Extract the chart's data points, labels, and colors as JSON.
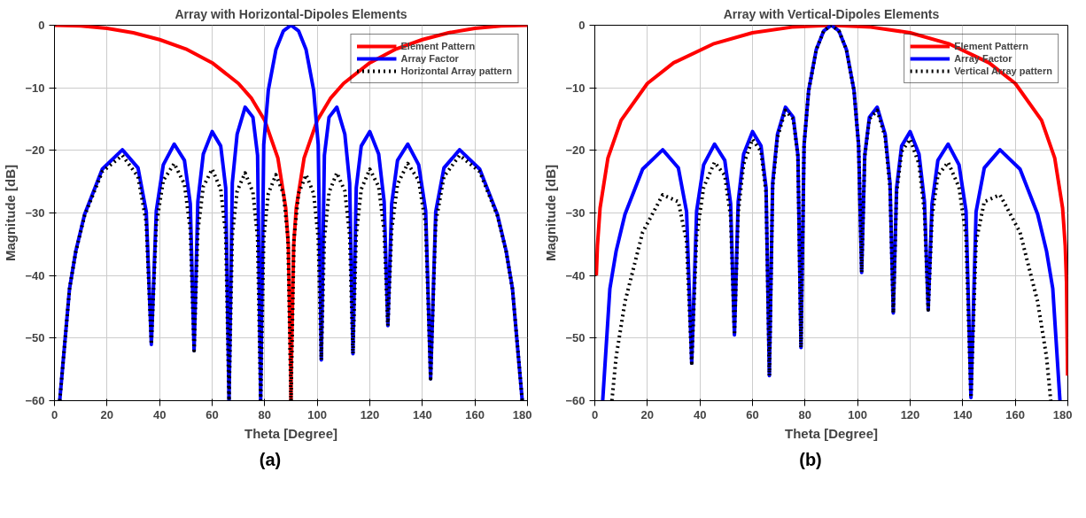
{
  "chart_data": [
    {
      "type": "line",
      "title": "Array with Horizontal-Dipoles Elements",
      "xlabel": "Theta [Degree]",
      "ylabel": "Magnitude [dB]",
      "xlim": [
        0,
        180
      ],
      "xticks": [
        0,
        20,
        40,
        60,
        80,
        100,
        120,
        140,
        160,
        180
      ],
      "ylim": [
        -60,
        0
      ],
      "yticks": [
        -60,
        -50,
        -40,
        -30,
        -20,
        -10,
        0
      ],
      "grid": true,
      "legend": "top right",
      "annotations": [
        "(a)"
      ],
      "series": [
        {
          "name": "Element Pattern",
          "color": "#ff0000",
          "line_style": "solid",
          "x": [
            0,
            10,
            20,
            30,
            40,
            50,
            60,
            70,
            75,
            80,
            85,
            88,
            89,
            89.9,
            90,
            90.1,
            91,
            92,
            95,
            100,
            105,
            110,
            120,
            130,
            140,
            150,
            160,
            170,
            180
          ],
          "values": [
            0,
            -0.1,
            -0.5,
            -1.2,
            -2.3,
            -3.8,
            -6,
            -9.3,
            -11.7,
            -15.2,
            -21.2,
            -29.2,
            -35.2,
            -55.2,
            -60,
            -55.2,
            -35.2,
            -29.2,
            -21.2,
            -15.2,
            -11.7,
            -9.3,
            -6,
            -3.8,
            -2.3,
            -1.2,
            -0.5,
            -0.1,
            0
          ]
        },
        {
          "name": "Array Factor",
          "color": "#0000ff",
          "line_style": "solid",
          "x": [
            2,
            5.73,
            8.11,
            11.48,
            18.19,
            25.84,
            31.79,
            34.92,
            36.87,
            38.74,
            41.41,
            45.57,
            49.46,
            51.68,
            53.13,
            54.55,
            56.63,
            60,
            63.26,
            65.17,
            66.42,
            67.67,
            69.51,
            72.54,
            75.52,
            77.29,
            78.46,
            79.63,
            81.37,
            84.26,
            87.13,
            90,
            92.87,
            95.74,
            98.63,
            100.37,
            101.54,
            102.71,
            104.48,
            107.46,
            110.49,
            112.33,
            113.58,
            114.83,
            116.74,
            120,
            123.37,
            125.45,
            126.87,
            128.32,
            130.54,
            134.43,
            138.59,
            141.26,
            143.13,
            145.08,
            148.21,
            154.16,
            161.81,
            168.52,
            171.89,
            174.27,
            178
          ],
          "values": [
            -60,
            -42.1,
            -36.1,
            -30.2,
            -23.0,
            -19.9,
            -22.8,
            -29.8,
            -51,
            -29.7,
            -22.3,
            -19.0,
            -21.6,
            -28.5,
            -52,
            -28.2,
            -20.6,
            -17.0,
            -19.3,
            -26.0,
            -60,
            -25.2,
            -17.4,
            -13.1,
            -14.7,
            -20.8,
            -60,
            -19.1,
            -10.4,
            -3.9,
            -0.9,
            0,
            -0.9,
            -3.9,
            -10.4,
            -19.1,
            -53.5,
            -20.8,
            -14.7,
            -13.1,
            -17.4,
            -25.2,
            -52.5,
            -26.0,
            -19.3,
            -17.0,
            -20.6,
            -28.2,
            -48,
            -28.5,
            -21.6,
            -19.0,
            -22.3,
            -29.7,
            -56.5,
            -29.8,
            -22.8,
            -19.9,
            -23.0,
            -30.2,
            -36.1,
            -42.1,
            -60
          ]
        },
        {
          "name": "Horizontal Array pattern",
          "color": "#000000",
          "line_style": "dotted",
          "x": [
            2,
            5.73,
            8.11,
            11.48,
            18.19,
            25.84,
            31.79,
            34.92,
            36.87,
            38.74,
            41.41,
            45.57,
            49.46,
            51.68,
            53.13,
            54.55,
            56.63,
            60,
            63.26,
            65.17,
            66.42,
            67.67,
            69.51,
            72.54,
            75.52,
            77.29,
            78.46,
            79.63,
            81.37,
            84.26,
            87.13,
            88.85,
            90,
            91.15,
            92.87,
            95.74,
            98.63,
            100.37,
            101.54,
            102.71,
            104.48,
            107.46,
            110.49,
            112.33,
            113.58,
            114.83,
            116.74,
            120,
            123.37,
            125.45,
            126.87,
            128.32,
            130.54,
            134.43,
            138.59,
            141.26,
            143.13,
            145.08,
            148.21,
            154.16,
            161.81,
            168.52,
            171.89,
            174.27,
            178
          ],
          "values": [
            -60,
            -42.1,
            -36.2,
            -30.4,
            -23.4,
            -20.8,
            -24.2,
            -31.5,
            -51,
            -31.9,
            -24.8,
            -22.1,
            -25.4,
            -32.7,
            -52,
            -32.9,
            -25.8,
            -23.0,
            -26.2,
            -33.5,
            -60,
            -33.6,
            -26.5,
            -23.6,
            -26.7,
            -34.0,
            -60,
            -34.0,
            -26.9,
            -23.9,
            -26.9,
            -34.1,
            -60,
            -34.1,
            -26.9,
            -23.9,
            -26.9,
            -34.0,
            -53.5,
            -34.0,
            -26.7,
            -23.6,
            -26.5,
            -33.6,
            -52.5,
            -33.5,
            -26.2,
            -23.0,
            -25.8,
            -32.9,
            -48,
            -32.7,
            -25.4,
            -22.1,
            -24.8,
            -31.9,
            -56.5,
            -31.5,
            -24.2,
            -20.8,
            -23.4,
            -30.4,
            -36.2,
            -42.1,
            -60
          ]
        }
      ]
    },
    {
      "type": "line",
      "title": "Array with Vertical-Dipoles Elements",
      "xlabel": "Theta [Degree]",
      "ylabel": "Magnitude [dB]",
      "xlim": [
        0,
        180
      ],
      "xticks": [
        0,
        20,
        40,
        60,
        80,
        100,
        120,
        140,
        160,
        180
      ],
      "ylim": [
        -60,
        0
      ],
      "yticks": [
        -60,
        -50,
        -40,
        -30,
        -20,
        -10,
        0
      ],
      "grid": true,
      "legend": "top right",
      "annotations": [
        "(b)"
      ],
      "series": [
        {
          "name": "Element Pattern",
          "color": "#ff0000",
          "line_style": "solid",
          "x": [
            0.57,
            1,
            2,
            5,
            10,
            20,
            30,
            45,
            60,
            75,
            90,
            105,
            120,
            135,
            150,
            160,
            170,
            175,
            178,
            179,
            179.5,
            179.91
          ],
          "values": [
            -40,
            -35.2,
            -29.2,
            -21.2,
            -15.2,
            -9.3,
            -6,
            -3,
            -1.2,
            -0.3,
            0,
            -0.3,
            -1.2,
            -3,
            -6,
            -9.3,
            -15.2,
            -21.2,
            -29.2,
            -35.2,
            -41.2,
            -56
          ]
        },
        {
          "name": "Array Factor",
          "color": "#0000ff",
          "line_style": "solid",
          "x": [
            3,
            5.73,
            8.11,
            11.48,
            18.19,
            25.84,
            31.79,
            34.92,
            36.87,
            38.74,
            41.41,
            45.57,
            49.46,
            51.68,
            53.13,
            54.55,
            56.63,
            60,
            63.26,
            65.17,
            66.42,
            67.67,
            69.51,
            72.54,
            75.52,
            77.29,
            78.46,
            79.63,
            81.37,
            84.26,
            87.13,
            90,
            92.87,
            95.74,
            98.63,
            100.37,
            101.54,
            102.71,
            104.48,
            107.46,
            110.49,
            112.33,
            113.58,
            114.83,
            116.74,
            120,
            123.37,
            125.45,
            126.87,
            128.32,
            130.54,
            134.43,
            138.59,
            141.26,
            143.13,
            145.08,
            148.21,
            154.16,
            161.81,
            168.52,
            171.89,
            174.27,
            177
          ],
          "values": [
            -60,
            -42.1,
            -36.1,
            -30.2,
            -23.0,
            -19.9,
            -22.8,
            -29.8,
            -54,
            -29.7,
            -22.3,
            -19.0,
            -21.6,
            -28.5,
            -49.5,
            -28.2,
            -20.6,
            -17.0,
            -19.3,
            -26.0,
            -56,
            -25.2,
            -17.4,
            -13.1,
            -14.7,
            -20.8,
            -51.5,
            -19.1,
            -10.4,
            -3.9,
            -0.9,
            0,
            -0.9,
            -3.9,
            -10.4,
            -19.1,
            -39.5,
            -20.8,
            -14.7,
            -13.1,
            -17.4,
            -25.2,
            -46,
            -26.0,
            -19.3,
            -17.0,
            -20.6,
            -28.2,
            -45.5,
            -28.5,
            -21.6,
            -19.0,
            -22.3,
            -29.7,
            -59.5,
            -29.8,
            -22.8,
            -19.9,
            -23.0,
            -30.2,
            -36.1,
            -42.1,
            -60
          ]
        },
        {
          "name": "Vertical Array pattern",
          "color": "#000000",
          "line_style": "dotted",
          "x": [
            6.5,
            8.11,
            11.48,
            18.19,
            25.84,
            31.79,
            34.92,
            36.87,
            38.74,
            41.41,
            45.57,
            49.46,
            51.68,
            53.13,
            54.55,
            56.63,
            60,
            63.26,
            65.17,
            66.42,
            67.67,
            69.51,
            72.54,
            75.52,
            77.29,
            78.46,
            79.63,
            81.37,
            84.26,
            87.13,
            90,
            92.87,
            95.74,
            98.63,
            100.37,
            101.54,
            102.71,
            104.48,
            107.46,
            110.49,
            112.33,
            113.58,
            114.83,
            116.74,
            120,
            123.37,
            125.45,
            126.87,
            128.32,
            130.54,
            134.43,
            138.59,
            141.26,
            143.13,
            145.08,
            148.21,
            154.16,
            161.81,
            168.52,
            171.89,
            173.5
          ],
          "values": [
            -60,
            -53.0,
            -44.2,
            -33.1,
            -27.1,
            -28.2,
            -34.6,
            -54,
            -33.7,
            -25.9,
            -21.9,
            -24.0,
            -30.6,
            -49.5,
            -30.0,
            -22.2,
            -18.2,
            -20.2,
            -26.8,
            -56,
            -25.9,
            -17.9,
            -13.6,
            -15.0,
            -21.0,
            -51.5,
            -19.2,
            -10.5,
            -3.9,
            -0.9,
            0,
            -0.9,
            -3.9,
            -10.5,
            -19.2,
            -39.5,
            -21.0,
            -15.0,
            -13.6,
            -17.9,
            -25.9,
            -46,
            -26.8,
            -20.2,
            -18.2,
            -22.2,
            -30.0,
            -45.5,
            -30.6,
            -24.0,
            -21.9,
            -25.9,
            -33.7,
            -59.5,
            -34.6,
            -28.2,
            -27.1,
            -33.1,
            -44.2,
            -53.0,
            -60
          ]
        }
      ]
    }
  ]
}
